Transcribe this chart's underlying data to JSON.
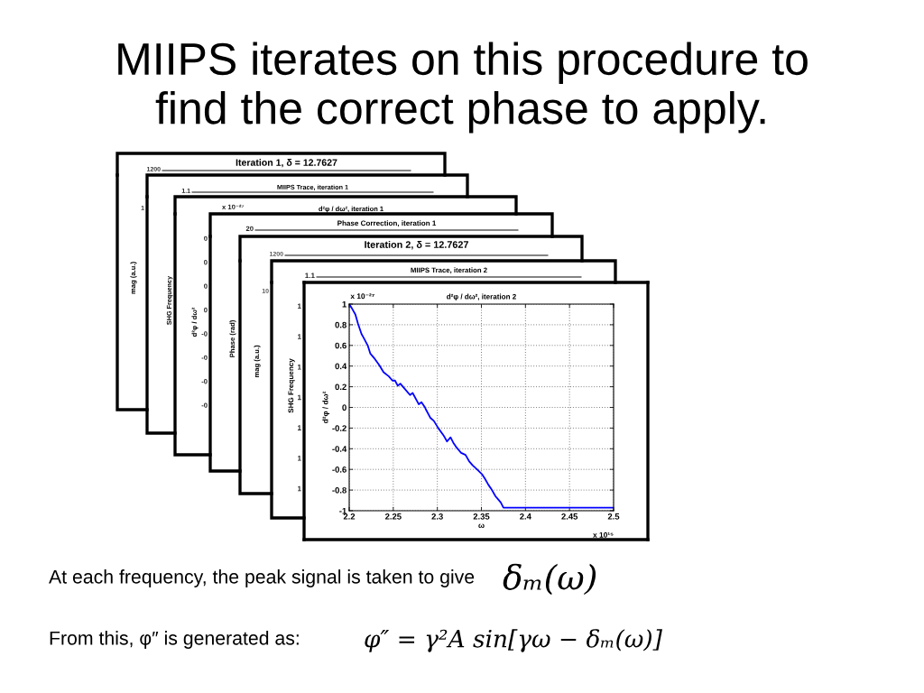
{
  "chart_data": [
    {
      "type": "other",
      "title": "MIIPS iterates on this procedure to find the correct phase to apply.",
      "annotations": [
        "At each frequency, the peak signal is taken to give",
        "δₘ(ω)",
        "From this, φ″ is generated as:",
        "φ″ = γ²A sin[γω − δₘ(ω)]"
      ]
    },
    {
      "type": "other",
      "title": "Iteration 1, δ = 12.7627",
      "ylabel": "mag (a.u.)",
      "annotations": [
        "1200",
        "1"
      ]
    },
    {
      "type": "other",
      "title": "MIIPS Trace, iteration 1",
      "ylabel": "SHG Frequency",
      "annotations": [
        "1.1"
      ]
    },
    {
      "type": "other",
      "title": "d²φ / dω², iteration 1",
      "ylabel": "d²φ / dω²",
      "annotations": [
        "x 10⁻²⁷",
        "0",
        "0",
        "0",
        "0",
        "-0",
        "-0",
        "-0",
        "-0"
      ]
    },
    {
      "type": "other",
      "title": "Phase Correction, iteration 1",
      "ylabel": "Phase (rad)",
      "annotations": [
        "20"
      ]
    },
    {
      "type": "other",
      "title": "Iteration 2, δ = 12.7627",
      "ylabel": "mag (a.u.)",
      "annotations": [
        "1200",
        "10"
      ]
    },
    {
      "type": "other",
      "title": "MIIPS Trace, iteration 2",
      "ylabel": "SHG Frequency",
      "annotations": [
        "1.1",
        "1",
        "1",
        "1",
        "1",
        "1",
        "1",
        "1"
      ]
    },
    {
      "type": "line",
      "title": "d²φ / dω², iteration 2",
      "xlabel": "ω",
      "ylabel": "d²φ / dω²",
      "x": [
        2.2,
        2.203,
        2.207,
        2.21,
        2.214,
        2.216,
        2.221,
        2.224,
        2.229,
        2.234,
        2.239,
        2.245,
        2.249,
        2.252,
        2.255,
        2.258,
        2.263,
        2.269,
        2.272,
        2.279,
        2.282,
        2.286,
        2.287,
        2.292,
        2.296,
        2.301,
        2.307,
        2.311,
        2.315,
        2.318,
        2.322,
        2.327,
        2.332,
        2.336,
        2.34,
        2.345,
        2.351,
        2.354,
        2.358,
        2.362,
        2.366,
        2.369,
        2.372,
        2.375,
        2.378,
        2.5
      ],
      "series": [
        {
          "color": "#0000ff",
          "values": [
            1.0,
            0.96,
            0.9,
            0.81,
            0.71,
            0.68,
            0.6,
            0.52,
            0.47,
            0.41,
            0.34,
            0.3,
            0.26,
            0.26,
            0.21,
            0.23,
            0.18,
            0.12,
            0.14,
            0.03,
            0.05,
            0.0,
            -0.02,
            -0.1,
            -0.13,
            -0.2,
            -0.27,
            -0.33,
            -0.29,
            -0.34,
            -0.39,
            -0.44,
            -0.46,
            -0.52,
            -0.56,
            -0.6,
            -0.65,
            -0.69,
            -0.75,
            -0.8,
            -0.86,
            -0.89,
            -0.92,
            -0.97,
            -0.97,
            -0.97
          ]
        }
      ],
      "xlim": [
        2.2,
        2.5
      ],
      "ylim": [
        -1,
        1
      ],
      "xticks": [
        2.2,
        2.25,
        2.3,
        2.35,
        2.4,
        2.45,
        2.5
      ],
      "yticks": [
        -1,
        -0.8,
        -0.6,
        -0.4,
        -0.2,
        0,
        0.2,
        0.4,
        0.6,
        0.8,
        1
      ],
      "grid": true,
      "annotations": [
        "x 10⁻²⁷",
        "x 10¹⁵"
      ]
    }
  ]
}
